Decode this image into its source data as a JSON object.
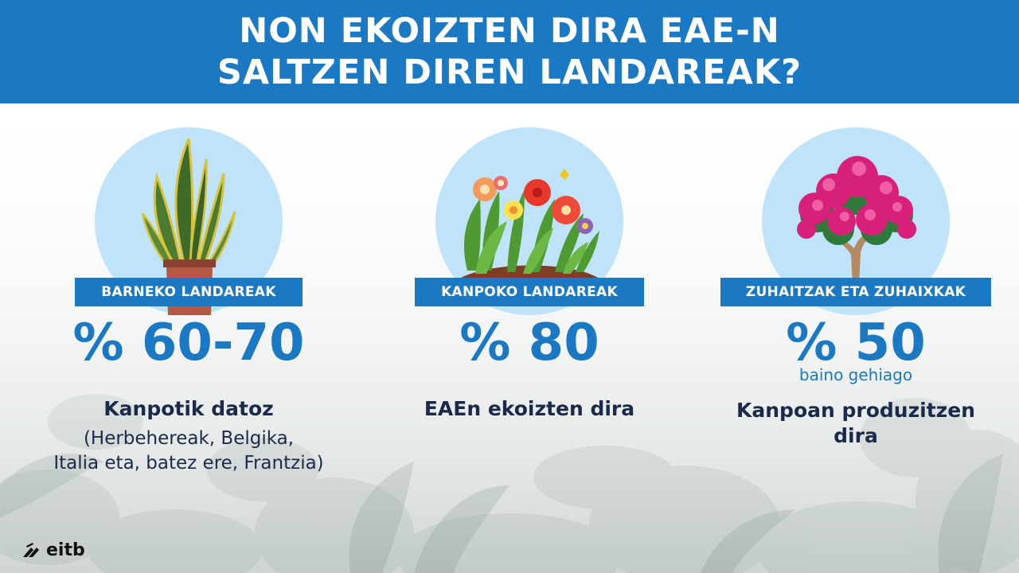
{
  "header": {
    "title_line1": "NON EKOIZTEN DIRA EAE-N",
    "title_line2": "SALTZEN DIREN LANDAREAK?"
  },
  "colors": {
    "header_bg": "#1b78c2",
    "accent_blue": "#1b78c2",
    "circle_bg": "#bfe3f8",
    "dark_text": "#1b2a4a"
  },
  "columns": [
    {
      "icon": "snake-plant-pot-icon",
      "label": "BARNEKO LANDAREAK",
      "percentage": "% 60-70",
      "sublabel": "",
      "description_bold": "Kanpotik datoz",
      "description_line1": "(Herbehereak, Belgika,",
      "description_line2": "Italia eta, batez ere, Frantzia)"
    },
    {
      "icon": "flower-bed-icon",
      "label": "KANPOKO LANDAREAK",
      "percentage": "% 80",
      "sublabel": "",
      "description_bold": "EAEn ekoizten dira",
      "description_line1": "",
      "description_line2": ""
    },
    {
      "icon": "flowering-tree-icon",
      "label": "ZUHAITZAK ETA ZUHAIXKAK",
      "percentage": "% 50",
      "sublabel": "baino gehiago",
      "description_bold_line1": "Kanpoan produzitzen",
      "description_bold_line2": "dira"
    }
  ],
  "logo": {
    "text": "eitb",
    "icon": "eitb-logo-icon"
  }
}
